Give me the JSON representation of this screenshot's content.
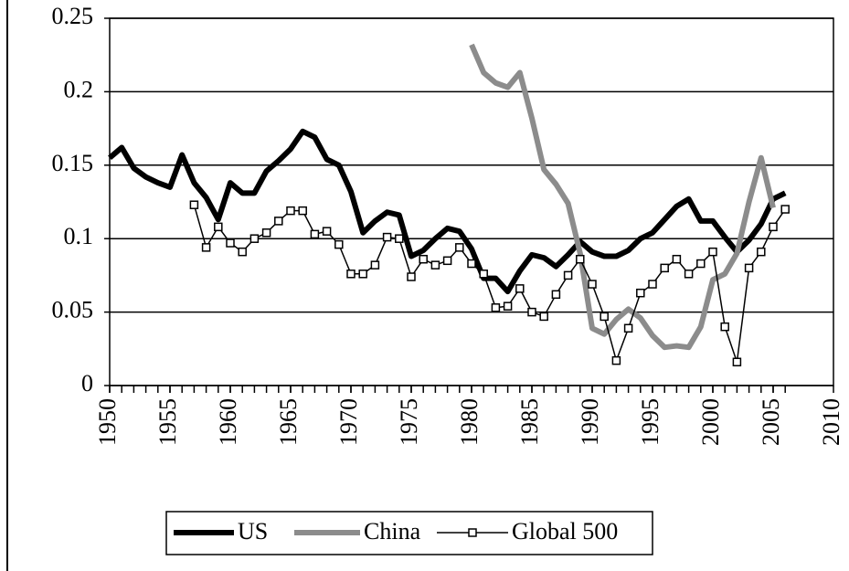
{
  "chart_data": {
    "type": "line",
    "x": [
      1950,
      1951,
      1952,
      1953,
      1954,
      1955,
      1956,
      1957,
      1958,
      1959,
      1960,
      1961,
      1962,
      1963,
      1964,
      1965,
      1966,
      1967,
      1968,
      1969,
      1970,
      1971,
      1972,
      1973,
      1974,
      1975,
      1976,
      1977,
      1978,
      1979,
      1980,
      1981,
      1982,
      1983,
      1984,
      1985,
      1986,
      1987,
      1988,
      1989,
      1990,
      1991,
      1992,
      1993,
      1994,
      1995,
      1996,
      1997,
      1998,
      1999,
      2000,
      2001,
      2002,
      2003,
      2004,
      2005,
      2006
    ],
    "series": [
      {
        "name": "US",
        "color": "#000000",
        "width": 6,
        "marker": false,
        "values": [
          0.155,
          0.162,
          0.148,
          0.142,
          0.138,
          0.135,
          0.157,
          0.138,
          0.128,
          0.113,
          0.138,
          0.131,
          0.131,
          0.146,
          0.153,
          0.161,
          0.173,
          0.169,
          0.154,
          0.15,
          0.132,
          0.104,
          0.112,
          0.118,
          0.116,
          0.088,
          0.092,
          0.1,
          0.107,
          0.105,
          0.093,
          0.073,
          0.073,
          0.064,
          0.078,
          0.089,
          0.087,
          0.081,
          0.089,
          0.098,
          0.091,
          0.088,
          0.088,
          0.092,
          0.1,
          0.104,
          0.113,
          0.122,
          0.127,
          0.112,
          0.112,
          0.101,
          0.091,
          0.099,
          0.11,
          0.127,
          0.131
        ]
      },
      {
        "name": "China",
        "color": "#8c8c8c",
        "width": 6,
        "marker": false,
        "values": [
          null,
          null,
          null,
          null,
          null,
          null,
          null,
          null,
          null,
          null,
          null,
          null,
          null,
          null,
          null,
          null,
          null,
          null,
          null,
          null,
          null,
          null,
          null,
          null,
          null,
          null,
          null,
          null,
          null,
          null,
          0.232,
          0.213,
          0.206,
          0.203,
          0.213,
          0.182,
          0.147,
          0.137,
          0.124,
          0.09,
          0.039,
          0.035,
          0.045,
          0.052,
          0.046,
          0.034,
          0.026,
          0.027,
          0.026,
          0.04,
          0.072,
          0.076,
          0.09,
          0.125,
          0.155,
          0.121,
          null
        ]
      },
      {
        "name": "Global 500",
        "color": "#000000",
        "width": 1.5,
        "marker": true,
        "values": [
          null,
          null,
          null,
          null,
          null,
          null,
          null,
          0.123,
          0.094,
          0.108,
          0.097,
          0.091,
          0.1,
          0.104,
          0.112,
          0.119,
          0.119,
          0.103,
          0.105,
          0.096,
          0.076,
          0.076,
          0.082,
          0.101,
          0.1,
          0.074,
          0.086,
          0.082,
          0.085,
          0.094,
          0.083,
          0.076,
          0.053,
          0.054,
          0.066,
          0.05,
          0.047,
          0.062,
          0.075,
          0.086,
          0.069,
          0.047,
          0.017,
          0.039,
          0.063,
          0.069,
          0.08,
          0.086,
          0.076,
          0.083,
          0.091,
          0.04,
          0.016,
          0.08,
          0.091,
          0.108,
          0.12
        ]
      }
    ],
    "xlim": [
      1950,
      2010
    ],
    "xticks": [
      1950,
      1955,
      1960,
      1965,
      1970,
      1975,
      1980,
      1985,
      1990,
      1995,
      2000,
      2005,
      2010
    ],
    "ylim": [
      0,
      0.25
    ],
    "yticks": [
      0,
      0.05,
      0.1,
      0.15,
      0.2,
      0.25
    ],
    "grid": true,
    "legend": "bottom"
  }
}
